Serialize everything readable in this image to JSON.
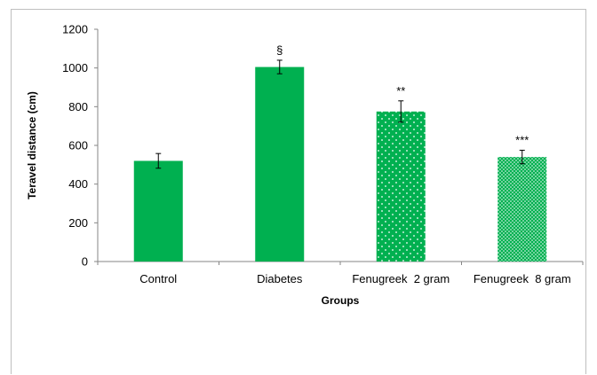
{
  "chart_data": {
    "type": "bar",
    "title": "",
    "xlabel": "Groups",
    "ylabel": "Teravel distance (cm)",
    "ylim": [
      0,
      1200
    ],
    "yticks": [
      0,
      200,
      400,
      600,
      800,
      1000,
      1200
    ],
    "categories": [
      "Control",
      "Diabetes",
      "Fenugreek  2 gram",
      "Fenugreek  8 gram"
    ],
    "values": [
      520,
      1005,
      775,
      540
    ],
    "errors": [
      38,
      35,
      55,
      35
    ],
    "annotations": [
      "",
      "§",
      "**",
      "***"
    ],
    "fills": [
      "solid",
      "solid",
      "dotted-sparse",
      "dotted-dense"
    ],
    "grid": false,
    "bar_color": "#00b050"
  }
}
